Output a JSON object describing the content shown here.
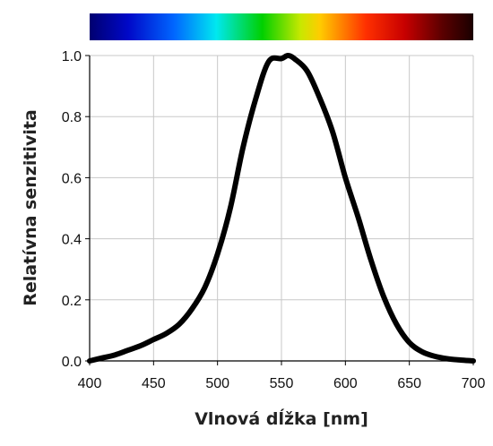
{
  "chart_data": {
    "type": "line",
    "title": "",
    "xlabel": "Vlnová dĺžka [nm]",
    "ylabel": "Relatívna senzitivita",
    "xlim": [
      400,
      700
    ],
    "ylim": [
      0,
      1.0
    ],
    "grid": true,
    "x_ticks": [
      "400",
      "450",
      "500",
      "550",
      "600",
      "650",
      "700"
    ],
    "y_ticks": [
      "0.0",
      "0.2",
      "0.4",
      "0.6",
      "0.8",
      "1.0"
    ],
    "spectrum_bar": true,
    "series": [
      {
        "color": "#000000",
        "x": [
          400,
          410,
          420,
          430,
          440,
          450,
          460,
          470,
          480,
          490,
          500,
          510,
          520,
          530,
          540,
          550,
          555,
          560,
          570,
          580,
          590,
          600,
          610,
          620,
          630,
          640,
          650,
          660,
          670,
          680,
          690,
          700
        ],
        "y": [
          0.0,
          0.01,
          0.02,
          0.035,
          0.05,
          0.07,
          0.09,
          0.12,
          0.17,
          0.24,
          0.35,
          0.5,
          0.7,
          0.86,
          0.98,
          0.99,
          1.0,
          0.99,
          0.95,
          0.86,
          0.75,
          0.6,
          0.47,
          0.33,
          0.21,
          0.12,
          0.06,
          0.03,
          0.015,
          0.007,
          0.003,
          0.0
        ]
      }
    ]
  }
}
